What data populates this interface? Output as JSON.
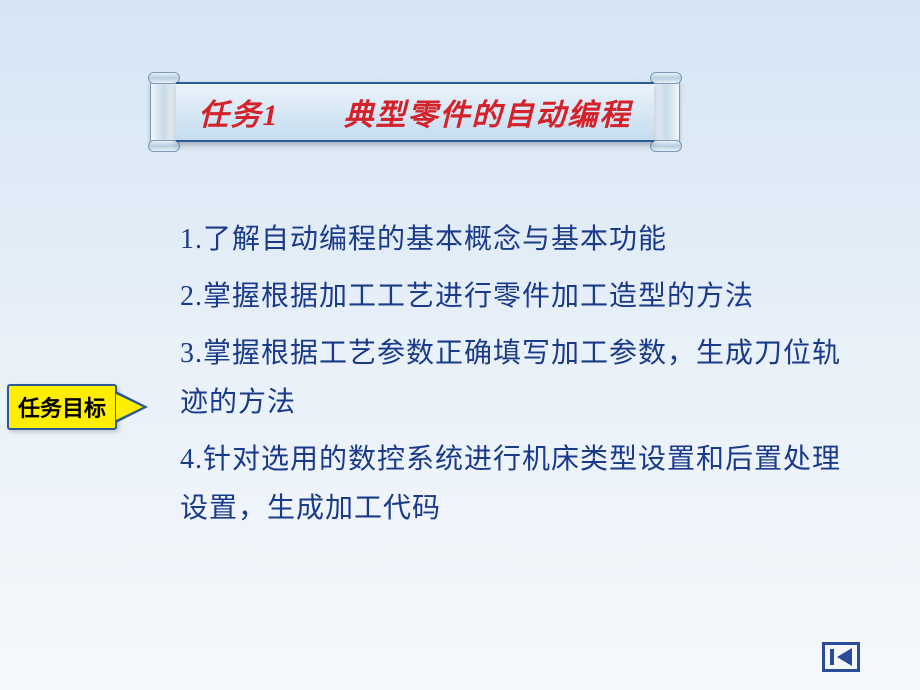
{
  "title": {
    "prefix": "任务",
    "number": "1",
    "spacer": "　　",
    "text": "典型零件的自动编程",
    "color": "#d4222a",
    "fontsize": 30
  },
  "label": {
    "text": "任务目标",
    "bg_color": "#ffee00",
    "border_color": "#2a5a9a",
    "fontsize": 22
  },
  "items": [
    "1.了解自动编程的基本概念与基本功能",
    "2.掌握根据加工工艺进行零件加工造型的方法",
    "3.掌握根据工艺参数正确填写加工参数，生成刀位轨迹的方法",
    "4.针对选用的数控系统进行机床类型设置和后置处理设置，生成加工代码"
  ],
  "content_style": {
    "color": "#1a3a8a",
    "fontsize": 28,
    "line_height": 1.75
  },
  "background": {
    "gradient_top": "#d5e5f5",
    "gradient_mid": "#e8f0f8",
    "gradient_bottom": "#f5f8fc"
  },
  "nav": {
    "name": "previous-slide"
  }
}
